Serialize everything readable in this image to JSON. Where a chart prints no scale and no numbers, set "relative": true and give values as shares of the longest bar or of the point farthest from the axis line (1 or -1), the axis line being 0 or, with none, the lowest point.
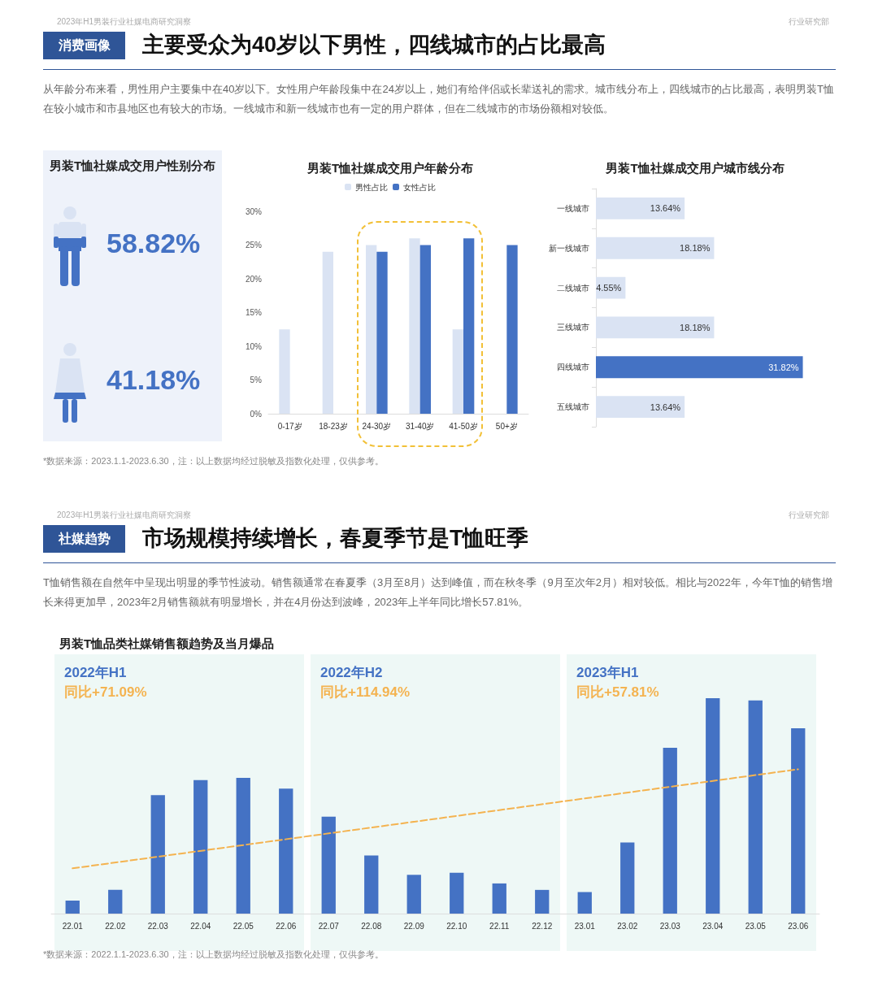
{
  "chart_data": [
    {
      "type": "other",
      "title": "男装T恤社媒成交用户性别分布",
      "values": [
        58.82,
        41.18
      ],
      "value_labels": [
        "58.82%",
        "41.18%"
      ],
      "color": "#4472c4",
      "annotations": [
        "2023年H1男装行业社媒电商研究洞察",
        "行业研究部",
        "消费画像",
        "主要受众为40岁以下男性，四线城市的占比最高",
        "从年龄分布来看，男性用户主要集中在40岁以下。女性用户年龄段集中在24岁以上，她们有给伴侣或长辈送礼的需求。城市线分布上，四线城市的占比最高，表明男装T恤在较小城市和市县地区也有较大的市场。一线城市和新一线城市也有一定的用户群体，但在二线城市的市场份额相对较低。",
        "*数据来源：2023.1.1-2023.6.30，注：以上数据均经过脱敏及指数化处理，仅供参考。"
      ]
    },
    {
      "type": "bar",
      "title": "男装T恤社媒成交用户年龄分布",
      "categories": [
        "0-17岁",
        "18-23岁",
        "24-30岁",
        "31-40岁",
        "41-50岁",
        "50+岁"
      ],
      "series": [
        {
          "name": "男性占比",
          "color": "#dae3f3",
          "values": [
            12.5,
            24,
            25,
            26,
            12.5,
            0
          ]
        },
        {
          "name": "女性占比",
          "color": "#4472c4",
          "values": [
            0,
            0,
            24,
            25,
            26,
            25
          ]
        }
      ],
      "ylim": [
        0,
        30
      ],
      "yticks": [
        {
          "value": 0,
          "label": "0%"
        },
        {
          "value": 5,
          "label": "5%"
        },
        {
          "value": 10,
          "label": "10%"
        },
        {
          "value": 15,
          "label": "15%"
        },
        {
          "value": 20,
          "label": "20%"
        },
        {
          "value": 25,
          "label": "25%"
        },
        {
          "value": 30,
          "label": "30%"
        }
      ],
      "legend": "top",
      "grid": false
    },
    {
      "type": "bar",
      "orientation": "horizontal",
      "title": "男装T恤社媒成交用户城市线分布",
      "categories": [
        "一线城市",
        "新一线城市",
        "二线城市",
        "三线城市",
        "四线城市",
        "五线城市"
      ],
      "values": [
        13.64,
        18.18,
        4.55,
        18.18,
        31.82,
        13.64
      ],
      "colors": [
        "#dae3f3",
        "#dae3f3",
        "#dae3f3",
        "#dae3f3",
        "#4472c4",
        "#dae3f3"
      ],
      "value_labels": [
        "13.64%",
        "18.18%",
        "4.55%",
        "18.18%",
        "31.82%",
        "13.64%"
      ],
      "tick_labels": "y",
      "grid": false
    },
    {
      "type": "bar",
      "title": "男装T恤品类社媒销售额趋势及当月爆品",
      "relative": true,
      "categories": [
        "22.01",
        "22.02",
        "22.03",
        "22.04",
        "22.05",
        "22.06",
        "22.07",
        "22.08",
        "22.09",
        "22.10",
        "22.11",
        "22.12",
        "23.01",
        "23.02",
        "23.03",
        "23.04",
        "23.05",
        "23.06"
      ],
      "series": [
        {
          "color": "#4472c4",
          "values": [
            0.06,
            0.11,
            0.55,
            0.62,
            0.63,
            0.58,
            0.45,
            0.27,
            0.18,
            0.19,
            0.14,
            0.11,
            0.1,
            0.33,
            0.77,
            1,
            0.99,
            0.86
          ]
        },
        {
          "type": "line",
          "color": "#f4b350",
          "x": [
            "22.01",
            "23.06"
          ],
          "values": [
            0.21,
            0.67
          ],
          "line_style": "dashed",
          "marker": "none"
        }
      ],
      "grid": false,
      "bands": [
        {
          "axis": "x",
          "from": "22.01",
          "to": "22.06",
          "label": "2022年H1\n同比+71.09%",
          "color": "#eef8f6"
        },
        {
          "axis": "x",
          "from": "22.07",
          "to": "22.12",
          "label": "2022年H2\n同比+114.94%",
          "color": "#eef8f6"
        },
        {
          "axis": "x",
          "from": "23.01",
          "to": "23.06",
          "label": "2023年H1\n同比+57.81%",
          "color": "#eef8f6"
        }
      ],
      "annotations": [
        "2023年H1男装行业社媒电商研究洞察",
        "行业研究部",
        "社媒趋势",
        "市场规模持续增长，春夏季节是T恤旺季",
        "T恤销售额在自然年中呈现出明显的季节性波动。销售额通常在春夏季（3月至8月）达到峰值，而在秋冬季（9月至次年2月）相对较低。相比与2022年，今年T恤的销售增长来得更加早，2023年2月销售额就有明显增长，并在4月份达到波峰，2023年上半年同比增长57.81%。",
        "*数据来源：2022.1.1-2023.6.30，注：以上数据均经过脱敏及指数化处理，仅供参考。"
      ]
    }
  ]
}
